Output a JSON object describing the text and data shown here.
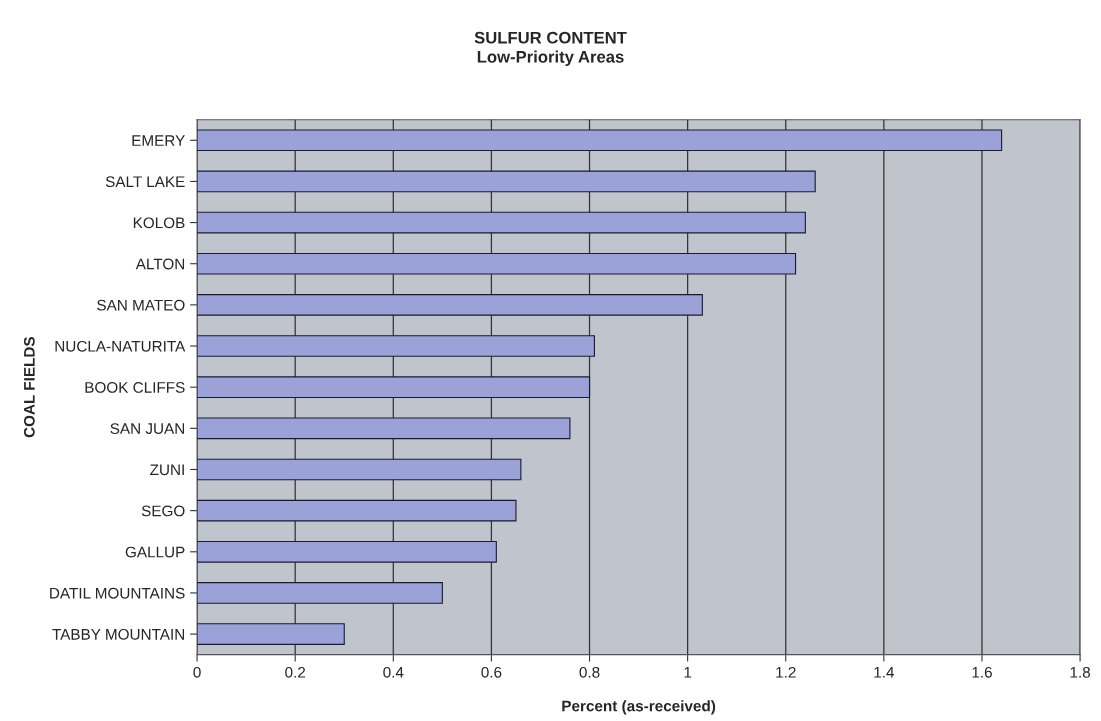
{
  "chart_data": {
    "type": "bar",
    "orientation": "horizontal",
    "title": "SULFUR CONTENT",
    "subtitle": "Low-Priority Areas",
    "xlabel": "Percent (as-received)",
    "ylabel": "COAL FIELDS",
    "categories": [
      "EMERY",
      "SALT LAKE",
      "KOLOB",
      "ALTON",
      "SAN MATEO",
      "NUCLA-NATURITA",
      "BOOK CLIFFS",
      "SAN JUAN",
      "ZUNI",
      "SEGO",
      "GALLUP",
      "DATIL MOUNTAINS",
      "TABBY MOUNTAIN"
    ],
    "values": [
      1.64,
      1.26,
      1.24,
      1.22,
      1.03,
      0.81,
      0.8,
      0.76,
      0.66,
      0.65,
      0.61,
      0.5,
      0.3
    ],
    "color": "#9aa2d8",
    "xlim": [
      0,
      1.8
    ],
    "xticks": [
      0,
      0.2,
      0.4,
      0.6,
      0.8,
      1,
      1.2,
      1.4,
      1.6,
      1.8
    ],
    "grid": "x",
    "legend": false
  }
}
